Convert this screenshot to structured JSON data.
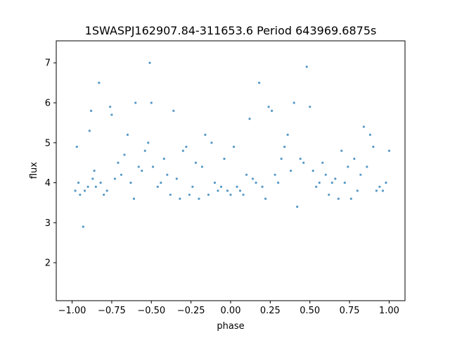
{
  "chart_data": {
    "type": "scatter",
    "title": "1SWASPJ162907.84-311653.6 Period 643969.6875s",
    "xlabel": "phase",
    "ylabel": "flux",
    "xlim": [
      -1.1,
      1.1
    ],
    "ylim": [
      1.05,
      7.55
    ],
    "x_ticks": [
      -1.0,
      -0.75,
      -0.5,
      -0.25,
      0.0,
      0.25,
      0.5,
      0.75,
      1.0
    ],
    "x_tick_labels": [
      "−1.00",
      "−0.75",
      "−0.50",
      "−0.25",
      "0.00",
      "0.25",
      "0.50",
      "0.75",
      "1.00"
    ],
    "y_ticks": [
      2,
      3,
      4,
      5,
      6,
      7
    ],
    "y_tick_labels": [
      "2",
      "3",
      "4",
      "5",
      "6",
      "7"
    ],
    "grid": false,
    "legend": "none",
    "marker_color": "#1f77b4",
    "series": [
      {
        "values": [
          [
            -0.98,
            3.8
          ],
          [
            -0.97,
            4.9
          ],
          [
            -0.96,
            4.0
          ],
          [
            -0.95,
            3.7
          ],
          [
            -0.93,
            2.9
          ],
          [
            -0.92,
            3.8
          ],
          [
            -0.9,
            3.9
          ],
          [
            -0.89,
            5.3
          ],
          [
            -0.88,
            5.8
          ],
          [
            -0.87,
            4.1
          ],
          [
            -0.86,
            4.3
          ],
          [
            -0.85,
            3.9
          ],
          [
            -0.83,
            6.5
          ],
          [
            -0.82,
            4.0
          ],
          [
            -0.8,
            3.7
          ],
          [
            -0.78,
            3.8
          ],
          [
            -0.76,
            5.9
          ],
          [
            -0.75,
            5.7
          ],
          [
            -0.73,
            4.1
          ],
          [
            -0.71,
            4.5
          ],
          [
            -0.69,
            4.2
          ],
          [
            -0.67,
            4.7
          ],
          [
            -0.65,
            5.2
          ],
          [
            -0.63,
            4.0
          ],
          [
            -0.61,
            3.6
          ],
          [
            -0.6,
            6.0
          ],
          [
            -0.58,
            4.4
          ],
          [
            -0.56,
            4.3
          ],
          [
            -0.54,
            4.8
          ],
          [
            -0.52,
            5.0
          ],
          [
            -0.51,
            7.0
          ],
          [
            -0.5,
            6.0
          ],
          [
            -0.49,
            4.4
          ],
          [
            -0.46,
            3.9
          ],
          [
            -0.44,
            4.0
          ],
          [
            -0.42,
            4.6
          ],
          [
            -0.4,
            4.2
          ],
          [
            -0.38,
            3.7
          ],
          [
            -0.36,
            5.8
          ],
          [
            -0.34,
            4.1
          ],
          [
            -0.32,
            3.6
          ],
          [
            -0.3,
            4.8
          ],
          [
            -0.28,
            4.9
          ],
          [
            -0.26,
            3.7
          ],
          [
            -0.24,
            3.9
          ],
          [
            -0.22,
            4.5
          ],
          [
            -0.2,
            3.6
          ],
          [
            -0.18,
            4.4
          ],
          [
            -0.16,
            5.2
          ],
          [
            -0.14,
            3.7
          ],
          [
            -0.12,
            5.0
          ],
          [
            -0.1,
            4.0
          ],
          [
            -0.08,
            3.8
          ],
          [
            -0.06,
            3.9
          ],
          [
            -0.04,
            4.6
          ],
          [
            -0.02,
            3.8
          ],
          [
            0.0,
            3.7
          ],
          [
            0.02,
            4.9
          ],
          [
            0.04,
            3.9
          ],
          [
            0.06,
            3.8
          ],
          [
            0.08,
            3.7
          ],
          [
            0.1,
            4.2
          ],
          [
            0.12,
            5.6
          ],
          [
            0.14,
            4.1
          ],
          [
            0.16,
            4.0
          ],
          [
            0.18,
            6.5
          ],
          [
            0.2,
            3.9
          ],
          [
            0.22,
            3.6
          ],
          [
            0.24,
            5.9
          ],
          [
            0.26,
            5.8
          ],
          [
            0.28,
            4.2
          ],
          [
            0.3,
            4.0
          ],
          [
            0.32,
            4.6
          ],
          [
            0.34,
            4.9
          ],
          [
            0.36,
            5.2
          ],
          [
            0.38,
            4.3
          ],
          [
            0.4,
            6.0
          ],
          [
            0.42,
            3.4
          ],
          [
            0.44,
            4.6
          ],
          [
            0.46,
            4.5
          ],
          [
            0.48,
            6.9
          ],
          [
            0.5,
            5.9
          ],
          [
            0.52,
            4.3
          ],
          [
            0.54,
            3.9
          ],
          [
            0.56,
            4.0
          ],
          [
            0.58,
            4.5
          ],
          [
            0.6,
            4.2
          ],
          [
            0.62,
            3.7
          ],
          [
            0.64,
            4.0
          ],
          [
            0.66,
            4.1
          ],
          [
            0.68,
            3.6
          ],
          [
            0.7,
            4.8
          ],
          [
            0.72,
            4.0
          ],
          [
            0.74,
            4.4
          ],
          [
            0.76,
            3.6
          ],
          [
            0.78,
            4.6
          ],
          [
            0.8,
            3.8
          ],
          [
            0.82,
            4.2
          ],
          [
            0.84,
            5.4
          ],
          [
            0.86,
            4.4
          ],
          [
            0.88,
            5.2
          ],
          [
            0.9,
            4.9
          ],
          [
            0.92,
            3.8
          ],
          [
            0.94,
            3.9
          ],
          [
            0.96,
            3.8
          ],
          [
            0.98,
            4.0
          ],
          [
            1.0,
            4.8
          ]
        ]
      }
    ]
  }
}
